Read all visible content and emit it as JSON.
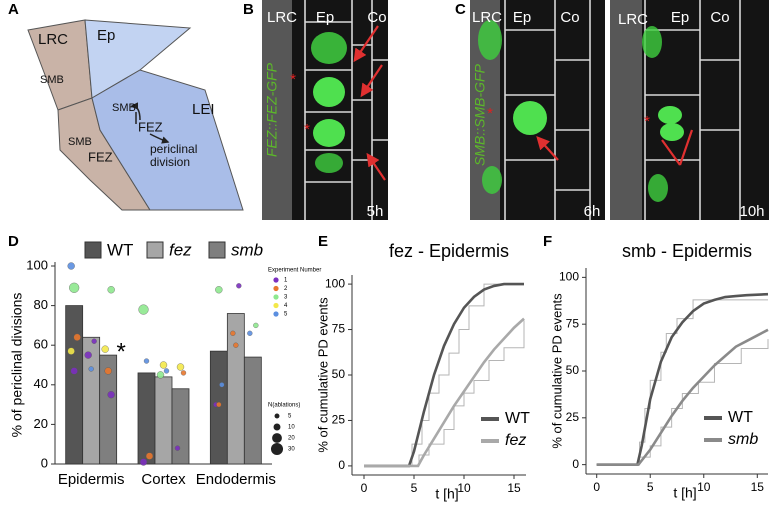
{
  "panel_labels": [
    "A",
    "B",
    "C",
    "D",
    "E",
    "F"
  ],
  "diagram": {
    "labels": [
      "LRC",
      "Ep",
      "SMB",
      "SMB",
      "FEZ",
      "LEI",
      "SMB",
      "FEZ"
    ],
    "division_lines": [
      "periclinal",
      "division"
    ]
  },
  "micrographs": [
    {
      "columns": [
        "LRC",
        "Ep",
        "Co"
      ],
      "label": "FEZ::FEZ-GFP",
      "time": "5h",
      "asterisks": [
        "*",
        "*"
      ]
    },
    {
      "columns": [
        "LRC",
        "Ep",
        "Co"
      ],
      "label": "SMB::SMB-GFP",
      "time": "6h",
      "asterisks": [
        "*"
      ]
    },
    {
      "columns": [
        "LRC",
        "Ep",
        "Co"
      ],
      "time": "10h",
      "asterisks": [
        "*"
      ]
    }
  ],
  "chart_data": [
    {
      "type": "bar",
      "ylabel": "% of periclinal divisions",
      "categories": [
        "Epidermis",
        "Cortex",
        "Endodermis"
      ],
      "series": [
        {
          "name": "WT",
          "color": "#555555",
          "values": [
            80,
            46,
            57
          ]
        },
        {
          "name": "fez",
          "color": "#a6a6a6",
          "values": [
            64,
            44,
            76
          ]
        },
        {
          "name": "smb",
          "color": "#7f7f7f",
          "values": [
            55,
            38,
            54
          ]
        }
      ],
      "ylim": [
        0,
        100
      ],
      "yticks": [
        0,
        20,
        40,
        60,
        80,
        100
      ],
      "annotation": "*",
      "experiment_legend": {
        "title": "Experiment Number",
        "labels": [
          "1",
          "2",
          "3",
          "4",
          "5"
        ],
        "colors": [
          "#7b2fbf",
          "#e8772e",
          "#8ee88e",
          "#f3e84a",
          "#5b8fe0"
        ]
      },
      "size_legend": {
        "title": "N(ablations)",
        "values": [
          5,
          10,
          20,
          30
        ]
      },
      "points": [
        {
          "category": 0,
          "series": 0,
          "experiment": 4,
          "value": 100,
          "n": 10
        },
        {
          "category": 0,
          "series": 0,
          "experiment": 2,
          "value": 89,
          "n": 20
        },
        {
          "category": 0,
          "series": 0,
          "experiment": 1,
          "value": 64,
          "n": 10
        },
        {
          "category": 0,
          "series": 0,
          "experiment": 3,
          "value": 57,
          "n": 10
        },
        {
          "category": 0,
          "series": 0,
          "experiment": 0,
          "value": 47,
          "n": 10
        },
        {
          "category": 0,
          "series": 1,
          "experiment": 0,
          "value": 62,
          "n": 5
        },
        {
          "category": 0,
          "series": 1,
          "experiment": 0,
          "value": 55,
          "n": 10
        },
        {
          "category": 0,
          "series": 1,
          "experiment": 4,
          "value": 48,
          "n": 5
        },
        {
          "category": 0,
          "series": 2,
          "experiment": 2,
          "value": 88,
          "n": 10
        },
        {
          "category": 0,
          "series": 2,
          "experiment": 3,
          "value": 58,
          "n": 10
        },
        {
          "category": 0,
          "series": 2,
          "experiment": 1,
          "value": 47,
          "n": 10
        },
        {
          "category": 0,
          "series": 2,
          "experiment": 0,
          "value": 35,
          "n": 10
        },
        {
          "category": 1,
          "series": 0,
          "experiment": 2,
          "value": 78,
          "n": 20
        },
        {
          "category": 1,
          "series": 0,
          "experiment": 4,
          "value": 52,
          "n": 5
        },
        {
          "category": 1,
          "series": 0,
          "experiment": 1,
          "value": 4,
          "n": 10
        },
        {
          "category": 1,
          "series": 0,
          "experiment": 0,
          "value": 1,
          "n": 10
        },
        {
          "category": 1,
          "series": 1,
          "experiment": 3,
          "value": 50,
          "n": 10
        },
        {
          "category": 1,
          "series": 1,
          "experiment": 4,
          "value": 47,
          "n": 5
        },
        {
          "category": 1,
          "series": 1,
          "experiment": 2,
          "value": 45,
          "n": 10
        },
        {
          "category": 1,
          "series": 2,
          "experiment": 3,
          "value": 49,
          "n": 10
        },
        {
          "category": 1,
          "series": 2,
          "experiment": 1,
          "value": 46,
          "n": 5
        },
        {
          "category": 1,
          "series": 2,
          "experiment": 0,
          "value": 8,
          "n": 5
        },
        {
          "category": 2,
          "series": 0,
          "experiment": 2,
          "value": 88,
          "n": 10
        },
        {
          "category": 2,
          "series": 0,
          "experiment": 4,
          "value": 40,
          "n": 5
        },
        {
          "category": 2,
          "series": 0,
          "experiment": 0,
          "value": 30,
          "n": 5
        },
        {
          "category": 2,
          "series": 0,
          "experiment": 1,
          "value": 30,
          "n": 5
        },
        {
          "category": 2,
          "series": 1,
          "experiment": 0,
          "value": 90,
          "n": 5
        },
        {
          "category": 2,
          "series": 1,
          "experiment": 1,
          "value": 66,
          "n": 5
        },
        {
          "category": 2,
          "series": 1,
          "experiment": 1,
          "value": 60,
          "n": 5
        },
        {
          "category": 2,
          "series": 2,
          "experiment": 2,
          "value": 70,
          "n": 5
        },
        {
          "category": 2,
          "series": 2,
          "experiment": 4,
          "value": 66,
          "n": 5
        }
      ]
    },
    {
      "type": "line",
      "title": "fez - Epidermis",
      "xlabel": "t [h]",
      "ylabel": "% of cumulative PD events",
      "xlim": [
        -1.2,
        16.2
      ],
      "xticks": [
        0,
        5,
        10,
        15
      ],
      "ylim": [
        -5,
        105
      ],
      "yticks": [
        0,
        25,
        50,
        75,
        100
      ],
      "series": [
        {
          "step": true,
          "color": "#b5b5b5",
          "x": [
            0,
            4.8,
            5.8,
            6.5,
            7.5,
            8.5,
            9.5,
            10.5,
            12,
            16
          ],
          "values": [
            0,
            12,
            25,
            40,
            50,
            62,
            75,
            88,
            100,
            100
          ]
        },
        {
          "step": true,
          "color": "#b5b5b5",
          "x": [
            0,
            5.5,
            6.5,
            8,
            9,
            10,
            11,
            12.5,
            14,
            16
          ],
          "values": [
            0,
            6,
            12,
            20,
            33,
            40,
            47,
            58,
            65,
            80
          ]
        },
        {
          "name": "WT",
          "color": "#555555",
          "x": [
            0,
            4.5,
            5,
            6,
            7,
            8,
            9,
            10,
            11,
            12,
            13,
            14,
            15,
            16
          ],
          "values": [
            0,
            0,
            8,
            30,
            50,
            66,
            78,
            87,
            93,
            97,
            99,
            100,
            100,
            100
          ]
        },
        {
          "name": "fez",
          "color": "#a9a9a9",
          "x": [
            0,
            5.4,
            6,
            7,
            8,
            9,
            10,
            11,
            12,
            13,
            14,
            15,
            16
          ],
          "values": [
            0,
            0,
            6,
            15,
            24,
            33,
            41,
            49,
            57,
            64,
            70,
            76,
            81
          ]
        }
      ]
    },
    {
      "type": "line",
      "title": "smb - Epidermis",
      "xlabel": "t [h]",
      "ylabel": "% of cumulative PD events",
      "xlim": [
        -1,
        16
      ],
      "xticks": [
        0,
        5,
        10,
        15
      ],
      "ylim": [
        -5,
        105
      ],
      "yticks": [
        0,
        25,
        50,
        75,
        100
      ],
      "series": [
        {
          "step": true,
          "color": "#b5b5b5",
          "x": [
            0,
            4,
            4.5,
            5,
            6,
            6.5,
            7.5,
            9,
            16
          ],
          "values": [
            0,
            12,
            30,
            45,
            60,
            70,
            78,
            88,
            88
          ]
        },
        {
          "step": true,
          "color": "#b5b5b5",
          "x": [
            0,
            4,
            5,
            6,
            7,
            8,
            9.5,
            11,
            13.5,
            16
          ],
          "values": [
            0,
            4,
            10,
            20,
            30,
            38,
            44,
            54,
            62,
            67
          ]
        },
        {
          "name": "WT",
          "color": "#555555",
          "x": [
            0,
            3.8,
            4.2,
            5,
            6,
            7,
            8,
            9,
            10,
            11,
            12,
            13,
            14,
            16
          ],
          "values": [
            0,
            0,
            10,
            35,
            55,
            68,
            76,
            82,
            86,
            88,
            89.5,
            90,
            90.5,
            91
          ]
        },
        {
          "name": "smb",
          "color": "#8a8a8a",
          "x": [
            0,
            3.9,
            5,
            6,
            7,
            8,
            9,
            10,
            11,
            12,
            13,
            14,
            15,
            16
          ],
          "values": [
            0,
            0,
            8,
            17,
            26,
            34,
            41,
            47,
            53,
            58,
            63,
            66,
            69,
            72
          ]
        }
      ]
    }
  ]
}
